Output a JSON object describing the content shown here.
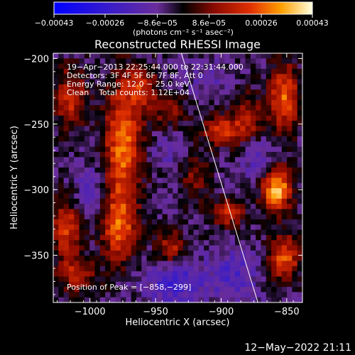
{
  "chart_data": {
    "type": "heatmap",
    "title": "Reconstructed RHESSI Image",
    "xlabel": "Heliocentric X (arcsec)",
    "ylabel": "Heliocentric Y (arcsec)",
    "xlim": [
      -1028,
      -838
    ],
    "ylim": [
      -386,
      -196
    ],
    "x_ticks": [
      -1000,
      -950,
      -900,
      -850
    ],
    "y_ticks": [
      -200,
      -250,
      -300,
      -350
    ],
    "x_tick_labels": [
      "−1000",
      "−950",
      "−900",
      "−850"
    ],
    "y_tick_labels": [
      "−200",
      "−250",
      "−300",
      "−350"
    ],
    "colorbar": {
      "range": [
        -0.00043,
        0.00043
      ],
      "ticks": [
        -0.00043,
        -0.00026,
        -8.6e-05,
        8.6e-05,
        0.00026,
        0.00043
      ],
      "tick_labels": [
        "−0.00043",
        "−0.00026",
        "−8.6e−05",
        "8.6e−05",
        "0.00026",
        "0.00043"
      ],
      "unit_label": "(photons cm⁻² s⁻¹ asec⁻²)"
    },
    "info_lines": [
      "19−Apr−2013 22:25:44.000 to 22:31:44.000",
      "Detectors: 3F 4F 5F 6F 7F 8F, Att 0",
      "Energy Range: 12.0 − 25.0 keV",
      "Clean    Total counts: 1.12E+04"
    ],
    "peak_label": "Position of Peak = [−858,−299]",
    "peak": [
      -858,
      -299
    ],
    "limb_line": {
      "from": [
        -932,
        -196
      ],
      "to": [
        -872,
        -386
      ]
    },
    "hot_regions": [
      {
        "x": -975,
        "y": -265,
        "sx": 10,
        "sy": 34,
        "amp": 0.00033
      },
      {
        "x": -978,
        "y": -330,
        "sx": 9,
        "sy": 18,
        "amp": 0.00028
      },
      {
        "x": -960,
        "y": -222,
        "sx": 8,
        "sy": 10,
        "amp": 0.00022
      },
      {
        "x": -1015,
        "y": -230,
        "sx": 8,
        "sy": 16,
        "amp": 0.00024
      },
      {
        "x": -1018,
        "y": -330,
        "sx": 8,
        "sy": 16,
        "amp": 0.00025
      },
      {
        "x": -1010,
        "y": -365,
        "sx": 10,
        "sy": 10,
        "amp": 0.0002
      },
      {
        "x": -938,
        "y": -345,
        "sx": 8,
        "sy": 9,
        "amp": 0.00022
      },
      {
        "x": -900,
        "y": -255,
        "sx": 10,
        "sy": 8,
        "amp": 0.00025
      },
      {
        "x": -895,
        "y": -318,
        "sx": 9,
        "sy": 8,
        "amp": 0.00022
      },
      {
        "x": -880,
        "y": -245,
        "sx": 8,
        "sy": 12,
        "amp": 0.0002
      },
      {
        "x": -852,
        "y": -230,
        "sx": 8,
        "sy": 18,
        "amp": 0.0003
      },
      {
        "x": -858,
        "y": -299,
        "sx": 8,
        "sy": 12,
        "amp": 0.00042
      },
      {
        "x": -852,
        "y": -352,
        "sx": 8,
        "sy": 12,
        "amp": 0.0003
      },
      {
        "x": -920,
        "y": -290,
        "sx": 8,
        "sy": 12,
        "amp": 0.00014
      },
      {
        "x": -940,
        "y": -240,
        "sx": 9,
        "sy": 9,
        "amp": 0.00015
      }
    ],
    "cold_regions": [
      {
        "x": -935,
        "y": -370,
        "sx": 16,
        "sy": 12,
        "amp": -0.00018
      },
      {
        "x": -890,
        "y": -365,
        "sx": 12,
        "sy": 14,
        "amp": -0.00014
      },
      {
        "x": -870,
        "y": -280,
        "sx": 9,
        "sy": 12,
        "amp": -0.00012
      },
      {
        "x": -1000,
        "y": -300,
        "sx": 9,
        "sy": 14,
        "amp": -0.0001
      },
      {
        "x": -940,
        "y": -270,
        "sx": 8,
        "sy": 8,
        "amp": -9e-05
      },
      {
        "x": -910,
        "y": -215,
        "sx": 10,
        "sy": 10,
        "amp": -8e-05
      }
    ]
  },
  "timestamp": "12−May−2022 21:11"
}
